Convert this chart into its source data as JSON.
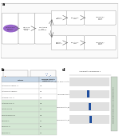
{
  "bg_color": "#ffffff",
  "panel_a": {
    "label": "a",
    "bg_color": "#f7f7f7",
    "border_color": "#aaaaaa"
  },
  "panel_b": {
    "label": "b",
    "scatter_color_orange": "#e87722",
    "scatter_color_blue": "#1f4e9e"
  },
  "panel_c": {
    "label": "c",
    "header_color": "#c8d8e8",
    "row_colors": [
      "#ffffff",
      "#ffffff",
      "#ffffff",
      "#d4e8d4",
      "#d4e8d4",
      "#d4e8d4",
      "#d4e8d4",
      "#d4e8d4",
      "#d4e8d4"
    ],
    "rows": [
      [
        "Anti-CD144 mAb clone 55-7H1",
        "100"
      ],
      [
        "Anti-CD144 mAb clone BV9",
        "98.5"
      ],
      [
        "Anti-human CD144 Ab",
        "97.2"
      ],
      [
        "Anti-mouse CD144 Ab",
        "96.1"
      ],
      [
        "Anti-rat CD144 Ab",
        "95.3"
      ],
      [
        "CD144 Ab species cross",
        "94.7"
      ],
      [
        "CD144 PE Ab",
        "93.2"
      ],
      [
        "CD144 FITC Ab",
        "91.8"
      ],
      [
        "CD144 APC Ab",
        "90.5"
      ]
    ],
    "col_header": [
      "Antibody",
      "FACS/Flow Cytometry\nCompatibility (%)"
    ]
  },
  "panel_d": {
    "label": "d",
    "title": "Alignment to chromosome 7",
    "row_labels": [
      "Patient 1: germline control",
      "CD144 bulk patient 1",
      "CD144 CE wildtype(wt)",
      "CD144 CE wildtype(wt)"
    ],
    "bar_color": "#1f4e9e",
    "bg_stripe": "#e0e0e0",
    "sidebar_text": "Read alignment to genome: colored reads highlighting mutations",
    "sidebar_color": "#c8d8c8"
  }
}
